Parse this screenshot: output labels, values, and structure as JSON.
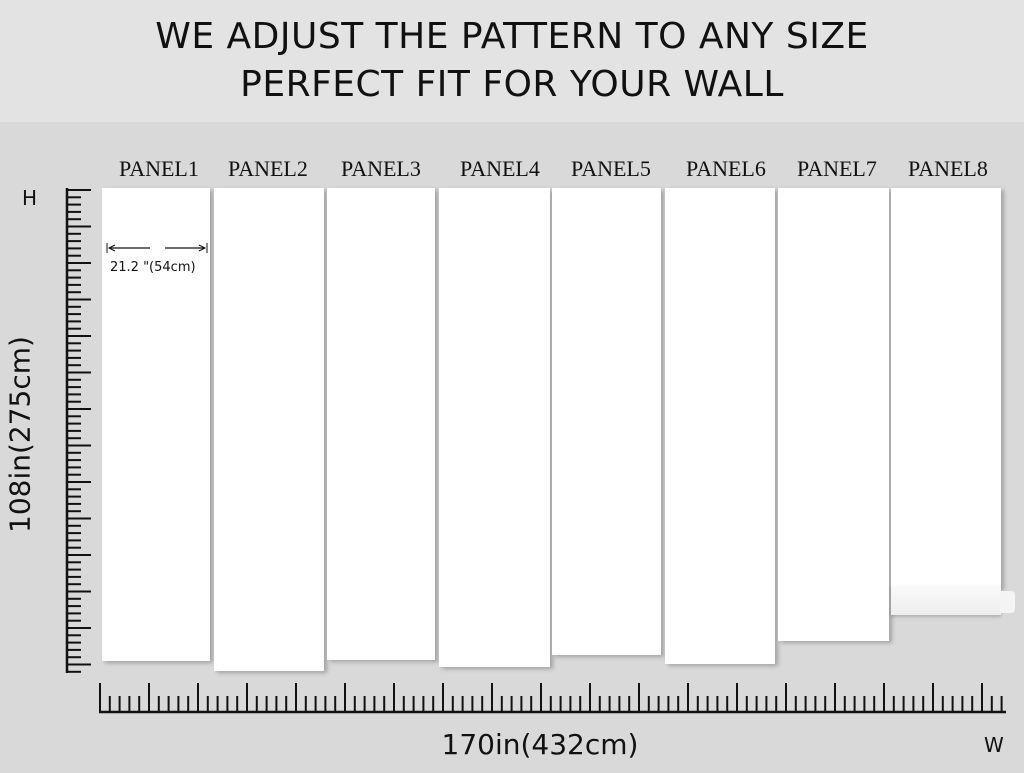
{
  "header": {
    "line1": "WE ADJUST THE PATTERN TO ANY SIZE",
    "line2": "PERFECT FIT FOR YOUR WALL"
  },
  "panels": [
    "PANEL1",
    "PANEL2",
    "PANEL3",
    "PANEL4",
    "PANEL5",
    "PANEL6",
    "PANEL7",
    "PANEL8"
  ],
  "panel_width_label": "21.2  \"(54cm)",
  "height_axis": {
    "corner": "H",
    "label": "108in(275cm)"
  },
  "width_axis": {
    "corner": "W",
    "label": "170in(432cm)"
  }
}
